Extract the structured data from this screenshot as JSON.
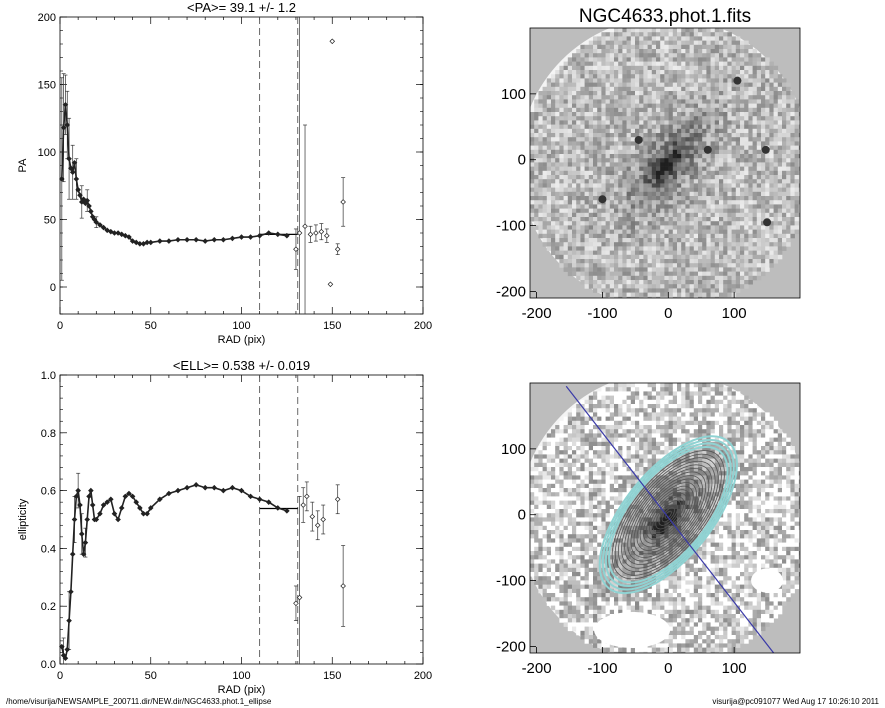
{
  "footer": {
    "path": "/home/visurija/NEWSAMPLE_200711.dir/NEW.dir/NGC4633.phot.1_ellipse",
    "stamp": "visurija@pc091077  Wed Aug 17 10:26:10 2011"
  },
  "chart_data": [
    {
      "type": "scatter",
      "title": "<PA>=  39.1 +/-   1.2",
      "xlabel": "RAD (pix)",
      "ylabel": "PA",
      "xlim": [
        0,
        200
      ],
      "ylim": [
        -20,
        200
      ],
      "xticks": [
        0,
        50,
        100,
        150,
        200
      ],
      "yticks": [
        0,
        50,
        100,
        150,
        200
      ],
      "vlines": [
        110,
        131
      ],
      "mean_bar": {
        "x": [
          110,
          131
        ],
        "y": 39
      },
      "series": [
        {
          "points": [
            [
              1,
              80
            ],
            [
              2,
              118
            ],
            [
              3,
              135
            ],
            [
              4,
              120
            ],
            [
              5,
              95
            ],
            [
              6,
              88
            ],
            [
              7,
              85
            ],
            [
              8,
              92
            ],
            [
              9,
              80
            ],
            [
              10,
              72
            ],
            [
              11,
              68
            ],
            [
              12,
              63
            ],
            [
              13,
              65
            ],
            [
              14,
              62
            ],
            [
              15,
              64
            ],
            [
              16,
              60
            ],
            [
              17,
              56
            ],
            [
              18,
              52
            ],
            [
              19,
              50
            ],
            [
              20,
              48
            ],
            [
              22,
              46
            ],
            [
              24,
              44
            ],
            [
              26,
              42
            ],
            [
              28,
              41
            ],
            [
              30,
              40
            ],
            [
              32,
              40
            ],
            [
              34,
              39
            ],
            [
              36,
              38
            ],
            [
              38,
              37
            ],
            [
              40,
              34
            ],
            [
              42,
              33
            ],
            [
              44,
              32
            ],
            [
              46,
              32
            ],
            [
              48,
              33
            ],
            [
              50,
              33
            ],
            [
              55,
              34
            ],
            [
              60,
              34
            ],
            [
              65,
              35
            ],
            [
              70,
              35
            ],
            [
              75,
              35
            ],
            [
              80,
              34
            ],
            [
              85,
              35
            ],
            [
              90,
              35
            ],
            [
              95,
              36
            ],
            [
              100,
              37
            ],
            [
              105,
              37
            ],
            [
              110,
              38
            ],
            [
              115,
              40
            ],
            [
              120,
              39
            ],
            [
              125,
              38
            ]
          ],
          "errors": [
            [
              1,
              80,
              75
            ],
            [
              2,
              118,
              40
            ],
            [
              3,
              135,
              22
            ],
            [
              4,
              120,
              25
            ],
            [
              5,
              95,
              30
            ],
            [
              7,
              85,
              20
            ],
            [
              9,
              80,
              15
            ],
            [
              12,
              63,
              12
            ],
            [
              15,
              64,
              8
            ],
            [
              20,
              48,
              4
            ]
          ]
        },
        {
          "points": [
            [
              130,
              28
            ],
            [
              132,
              40
            ],
            [
              135,
              45
            ],
            [
              138,
              39
            ],
            [
              141,
              40
            ],
            [
              144,
              41
            ],
            [
              147,
              38
            ],
            [
              149,
              2
            ],
            [
              150,
              182
            ],
            [
              153,
              28
            ],
            [
              156,
              63
            ]
          ],
          "errors": [
            [
              130,
              28,
              15
            ],
            [
              132,
              40,
              240
            ],
            [
              135,
              45,
              75
            ],
            [
              138,
              39,
              6
            ],
            [
              141,
              40,
              6
            ],
            [
              144,
              41,
              6
            ],
            [
              147,
              38,
              5
            ],
            [
              153,
              28,
              4
            ],
            [
              156,
              63,
              18
            ]
          ]
        }
      ]
    },
    {
      "type": "scatter",
      "title": "<ELL>= 0.538 +/-  0.019",
      "xlabel": "RAD (pix)",
      "ylabel": "ellipticity",
      "xlim": [
        0,
        200
      ],
      "ylim": [
        0,
        1
      ],
      "xticks": [
        0,
        50,
        100,
        150,
        200
      ],
      "yticks": [
        "0.0",
        "0.2",
        "0.4",
        "0.6",
        "0.8",
        "1.0"
      ],
      "vlines": [
        110,
        131
      ],
      "mean_bar": {
        "x": [
          110,
          131
        ],
        "y": 0.538
      },
      "series": [
        {
          "points": [
            [
              1,
              0.06
            ],
            [
              2,
              0.03
            ],
            [
              3,
              0.02
            ],
            [
              4,
              0.05
            ],
            [
              5,
              0.15
            ],
            [
              6,
              0.25
            ],
            [
              7,
              0.38
            ],
            [
              8,
              0.5
            ],
            [
              9,
              0.58
            ],
            [
              10,
              0.6
            ],
            [
              11,
              0.55
            ],
            [
              12,
              0.45
            ],
            [
              13,
              0.38
            ],
            [
              14,
              0.42
            ],
            [
              15,
              0.5
            ],
            [
              16,
              0.58
            ],
            [
              17,
              0.6
            ],
            [
              18,
              0.55
            ],
            [
              19,
              0.5
            ],
            [
              20,
              0.5
            ],
            [
              22,
              0.52
            ],
            [
              24,
              0.55
            ],
            [
              26,
              0.56
            ],
            [
              28,
              0.57
            ],
            [
              30,
              0.52
            ],
            [
              32,
              0.5
            ],
            [
              34,
              0.54
            ],
            [
              36,
              0.58
            ],
            [
              38,
              0.59
            ],
            [
              40,
              0.58
            ],
            [
              42,
              0.56
            ],
            [
              44,
              0.54
            ],
            [
              46,
              0.52
            ],
            [
              48,
              0.52
            ],
            [
              50,
              0.54
            ],
            [
              55,
              0.57
            ],
            [
              60,
              0.59
            ],
            [
              65,
              0.6
            ],
            [
              70,
              0.61
            ],
            [
              75,
              0.62
            ],
            [
              80,
              0.61
            ],
            [
              85,
              0.61
            ],
            [
              90,
              0.6
            ],
            [
              95,
              0.61
            ],
            [
              100,
              0.6
            ],
            [
              105,
              0.58
            ],
            [
              110,
              0.57
            ],
            [
              115,
              0.56
            ],
            [
              120,
              0.54
            ],
            [
              125,
              0.53
            ]
          ],
          "errors": [
            [
              2,
              0.03,
              0.06
            ],
            [
              5,
              0.15,
              0.1
            ],
            [
              8,
              0.5,
              0.08
            ],
            [
              10,
              0.6,
              0.06
            ],
            [
              12,
              0.45,
              0.07
            ],
            [
              14,
              0.42,
              0.05
            ]
          ]
        },
        {
          "points": [
            [
              130,
              0.21
            ],
            [
              132,
              0.23
            ],
            [
              134,
              0.55
            ],
            [
              136,
              0.58
            ],
            [
              139,
              0.51
            ],
            [
              142,
              0.48
            ],
            [
              145,
              0.5
            ],
            [
              153,
              0.57
            ],
            [
              156,
              0.27
            ]
          ],
          "errors": [
            [
              130,
              0.21,
              0.06
            ],
            [
              132,
              0.23,
              0.35
            ],
            [
              134,
              0.55,
              0.06
            ],
            [
              136,
              0.58,
              0.05
            ],
            [
              139,
              0.51,
              0.05
            ],
            [
              142,
              0.48,
              0.05
            ],
            [
              145,
              0.5,
              0.05
            ],
            [
              153,
              0.57,
              0.05
            ],
            [
              156,
              0.27,
              0.14
            ]
          ]
        }
      ]
    },
    {
      "type": "heatmap",
      "title": "NGC4633.phot.1.fits",
      "xlim": [
        -210,
        200
      ],
      "ylim": [
        -210,
        200
      ],
      "xticks": [
        -200,
        -100,
        0,
        100
      ],
      "yticks": [
        -200,
        -100,
        0,
        100
      ]
    },
    {
      "type": "heatmap",
      "title": "",
      "xlim": [
        -210,
        200
      ],
      "ylim": [
        -210,
        200
      ],
      "xticks": [
        -200,
        -100,
        0,
        100
      ],
      "yticks": [
        -200,
        -100,
        0,
        100
      ],
      "major_axis_line": [
        [
          -155,
          195
        ],
        [
          160,
          -210
        ]
      ],
      "isophote_pa_deg": 39.1,
      "isophote_ellipticity": 0.538
    }
  ]
}
